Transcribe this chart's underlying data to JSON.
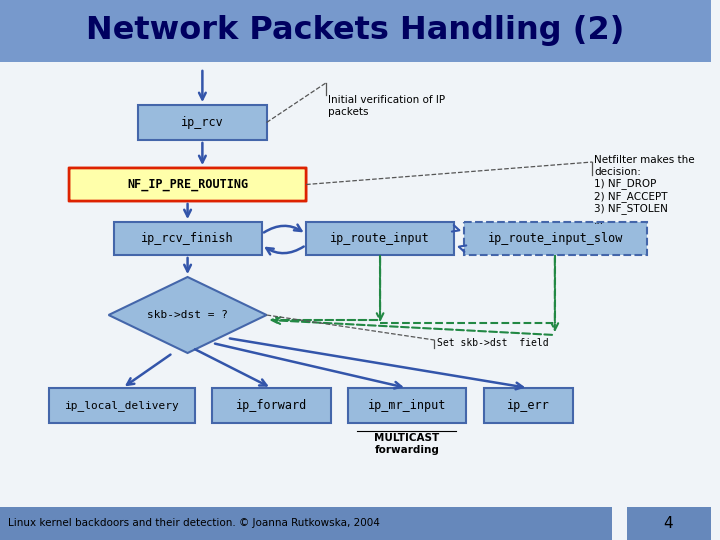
{
  "title": "Network Packets Handling (2)",
  "title_bg": "#7799cc",
  "title_color": "#000060",
  "footer_text": "Linux kernel backdoors and their detection. © Joanna Rutkowska, 2004",
  "footer_bg": "#6688bb",
  "page_num": "4",
  "bg_color": "#f0f4f8",
  "box_fill": "#99bbdd",
  "box_edge": "#4466aa",
  "nf_fill": "#ffffaa",
  "nf_edge": "#dd2200",
  "arrow_color": "#3355aa",
  "dashed_color": "#228844",
  "annotation_line_color": "#555555"
}
